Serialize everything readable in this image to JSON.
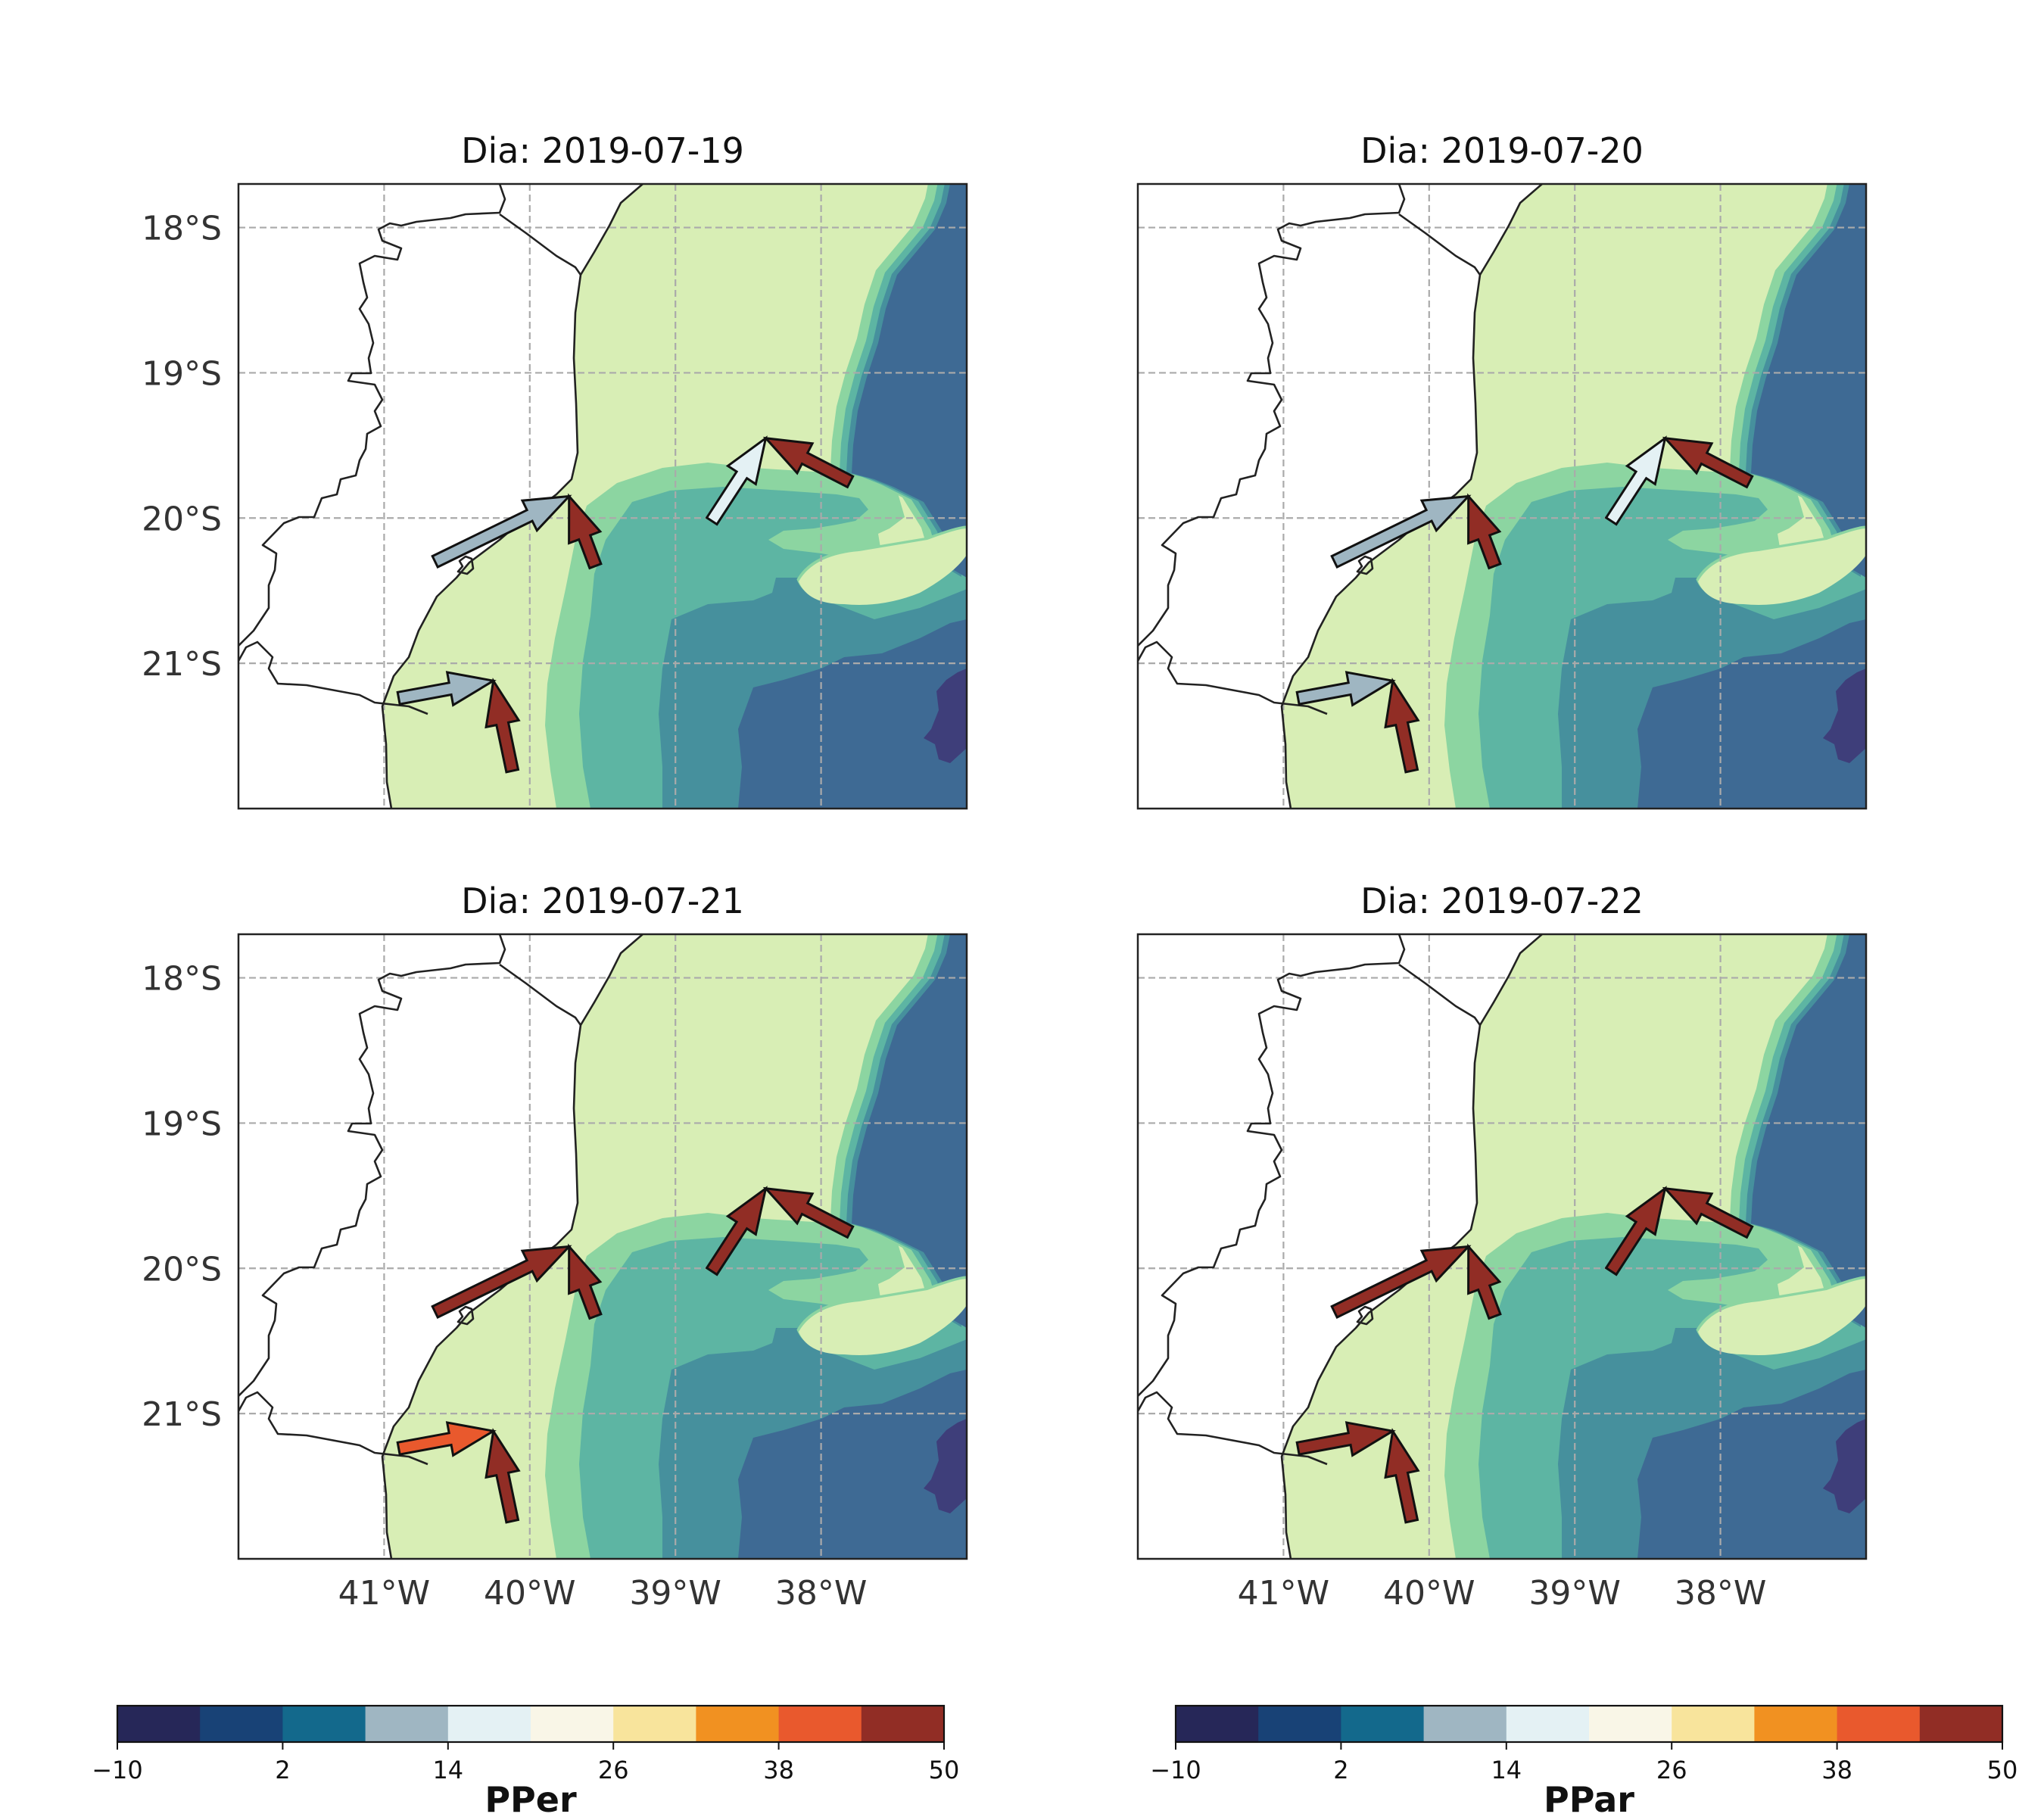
{
  "chart_data": {
    "type": "map-contour",
    "colormap": {
      "levels": [
        -10,
        -4,
        2,
        8,
        14,
        20,
        26,
        32,
        38,
        44,
        50
      ],
      "colors": [
        "#262758",
        "#184276",
        "#13698c",
        "#9fb6c2",
        "#e4f1f4",
        "#f9f6e7",
        "#f8e49c",
        "#f19121",
        "#e9592d",
        "#912d25"
      ]
    },
    "field_colors": {
      "land": "#ffffff",
      "coastal_band": "#d8eeb5",
      "shelf_band": "#8cd5a1",
      "mid_band": "#5db5a3",
      "deep_band": "#46909d",
      "open_ocean": "#3e6a94",
      "deepest": "#3e3e7a"
    },
    "grid": true,
    "lon_ticks": [
      -41,
      -40,
      -39,
      -38
    ],
    "lon_tick_labels": [
      "41°W",
      "40°W",
      "39°W",
      "38°W"
    ],
    "lat_ticks": [
      -18,
      -19,
      -20,
      -21
    ],
    "lat_tick_labels": [
      "18°S",
      "19°S",
      "20°S",
      "21°S"
    ],
    "extent": {
      "lon": [
        -42,
        -37
      ],
      "lat": [
        -22,
        -17.7
      ]
    },
    "panels": [
      {
        "title": "Dia: 2019-07-19",
        "arrows": [
          {
            "start": [
              -40.65,
              -20.3
            ],
            "tip": [
              -39.73,
              -19.85
            ],
            "color": "#9fb6c2"
          },
          {
            "start": [
              -39.55,
              -20.33
            ],
            "tip": [
              -39.73,
              -19.85
            ],
            "color": "#912d25"
          },
          {
            "start": [
              -38.75,
              -20.02
            ],
            "tip": [
              -38.38,
              -19.45
            ],
            "color": "#e4f1f4"
          },
          {
            "start": [
              -37.8,
              -19.75
            ],
            "tip": [
              -38.38,
              -19.45
            ],
            "color": "#912d25"
          },
          {
            "start": [
              -40.9,
              -21.24
            ],
            "tip": [
              -40.25,
              -21.12
            ],
            "color": "#9fb6c2"
          },
          {
            "start": [
              -40.12,
              -21.74
            ],
            "tip": [
              -40.25,
              -21.12
            ],
            "color": "#912d25"
          }
        ]
      },
      {
        "title": "Dia: 2019-07-20",
        "arrows": [
          {
            "start": [
              -40.65,
              -20.3
            ],
            "tip": [
              -39.73,
              -19.85
            ],
            "color": "#9fb6c2"
          },
          {
            "start": [
              -39.55,
              -20.33
            ],
            "tip": [
              -39.73,
              -19.85
            ],
            "color": "#912d25"
          },
          {
            "start": [
              -38.75,
              -20.02
            ],
            "tip": [
              -38.38,
              -19.45
            ],
            "color": "#e4f1f4"
          },
          {
            "start": [
              -37.8,
              -19.75
            ],
            "tip": [
              -38.38,
              -19.45
            ],
            "color": "#912d25"
          },
          {
            "start": [
              -40.9,
              -21.24
            ],
            "tip": [
              -40.25,
              -21.12
            ],
            "color": "#9fb6c2"
          },
          {
            "start": [
              -40.12,
              -21.74
            ],
            "tip": [
              -40.25,
              -21.12
            ],
            "color": "#912d25"
          }
        ]
      },
      {
        "title": "Dia: 2019-07-21",
        "arrows": [
          {
            "start": [
              -40.65,
              -20.3
            ],
            "tip": [
              -39.73,
              -19.85
            ],
            "color": "#912d25"
          },
          {
            "start": [
              -39.55,
              -20.33
            ],
            "tip": [
              -39.73,
              -19.85
            ],
            "color": "#912d25"
          },
          {
            "start": [
              -38.75,
              -20.02
            ],
            "tip": [
              -38.38,
              -19.45
            ],
            "color": "#912d25"
          },
          {
            "start": [
              -37.8,
              -19.75
            ],
            "tip": [
              -38.38,
              -19.45
            ],
            "color": "#912d25"
          },
          {
            "start": [
              -40.9,
              -21.24
            ],
            "tip": [
              -40.25,
              -21.12
            ],
            "color": "#e9592d"
          },
          {
            "start": [
              -40.12,
              -21.74
            ],
            "tip": [
              -40.25,
              -21.12
            ],
            "color": "#912d25"
          }
        ]
      },
      {
        "title": "Dia: 2019-07-22",
        "arrows": [
          {
            "start": [
              -40.65,
              -20.3
            ],
            "tip": [
              -39.73,
              -19.85
            ],
            "color": "#912d25"
          },
          {
            "start": [
              -39.55,
              -20.33
            ],
            "tip": [
              -39.73,
              -19.85
            ],
            "color": "#912d25"
          },
          {
            "start": [
              -38.75,
              -20.02
            ],
            "tip": [
              -38.38,
              -19.45
            ],
            "color": "#912d25"
          },
          {
            "start": [
              -37.8,
              -19.75
            ],
            "tip": [
              -38.38,
              -19.45
            ],
            "color": "#912d25"
          },
          {
            "start": [
              -40.9,
              -21.24
            ],
            "tip": [
              -40.25,
              -21.12
            ],
            "color": "#912d25"
          },
          {
            "start": [
              -40.12,
              -21.74
            ],
            "tip": [
              -40.25,
              -21.12
            ],
            "color": "#912d25"
          }
        ]
      }
    ],
    "colorbars": [
      {
        "label": "PPer",
        "range": [
          -10,
          50
        ],
        "ticks": [
          -10,
          2,
          14,
          26,
          38,
          50
        ],
        "tick_labels": [
          "−10",
          "2",
          "14",
          "26",
          "38",
          "50"
        ]
      },
      {
        "label": "PPar",
        "range": [
          -10,
          50
        ],
        "ticks": [
          -10,
          2,
          14,
          26,
          38,
          50
        ],
        "tick_labels": [
          "−10",
          "2",
          "14",
          "26",
          "38",
          "50"
        ]
      }
    ]
  }
}
